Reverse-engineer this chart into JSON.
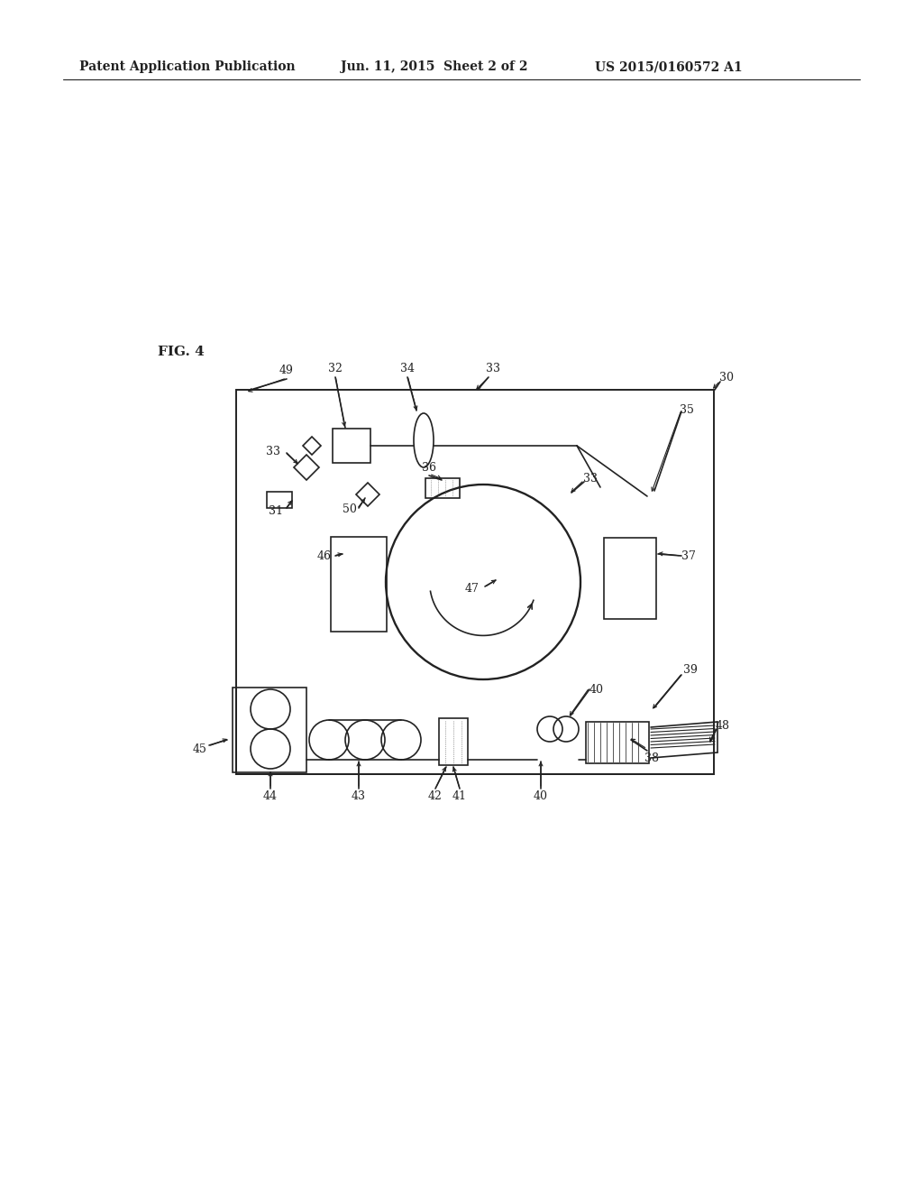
{
  "background_color": "#ffffff",
  "header_text": "Patent Application Publication",
  "header_date": "Jun. 11, 2015  Sheet 2 of 2",
  "header_patent": "US 2015/0160572 A1",
  "fig_label": "FIG. 4",
  "lw": 1.2,
  "black": "#222222"
}
